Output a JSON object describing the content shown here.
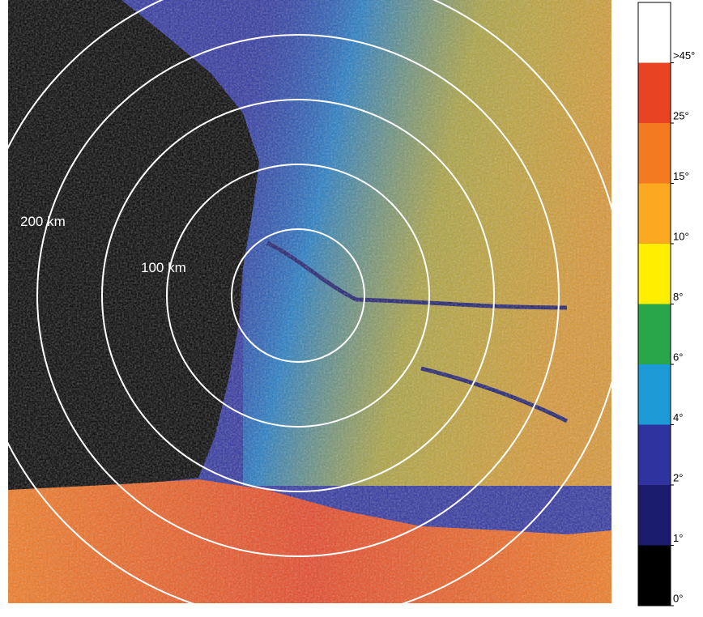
{
  "map": {
    "range_labels": [
      "200 km",
      "100 km"
    ]
  },
  "legend": {
    "colors": [
      "#000000",
      "#1c1c6e",
      "#2e33a0",
      "#1b9ad6",
      "#2aa64a",
      "#ffee00",
      "#f9a81f",
      "#f37a20",
      "#e84424",
      "#ffffff"
    ],
    "labels": [
      "0°",
      "1°",
      "2°",
      "4°",
      "6°",
      "8°",
      "10°",
      "15°",
      "25°",
      ">45°"
    ]
  }
}
